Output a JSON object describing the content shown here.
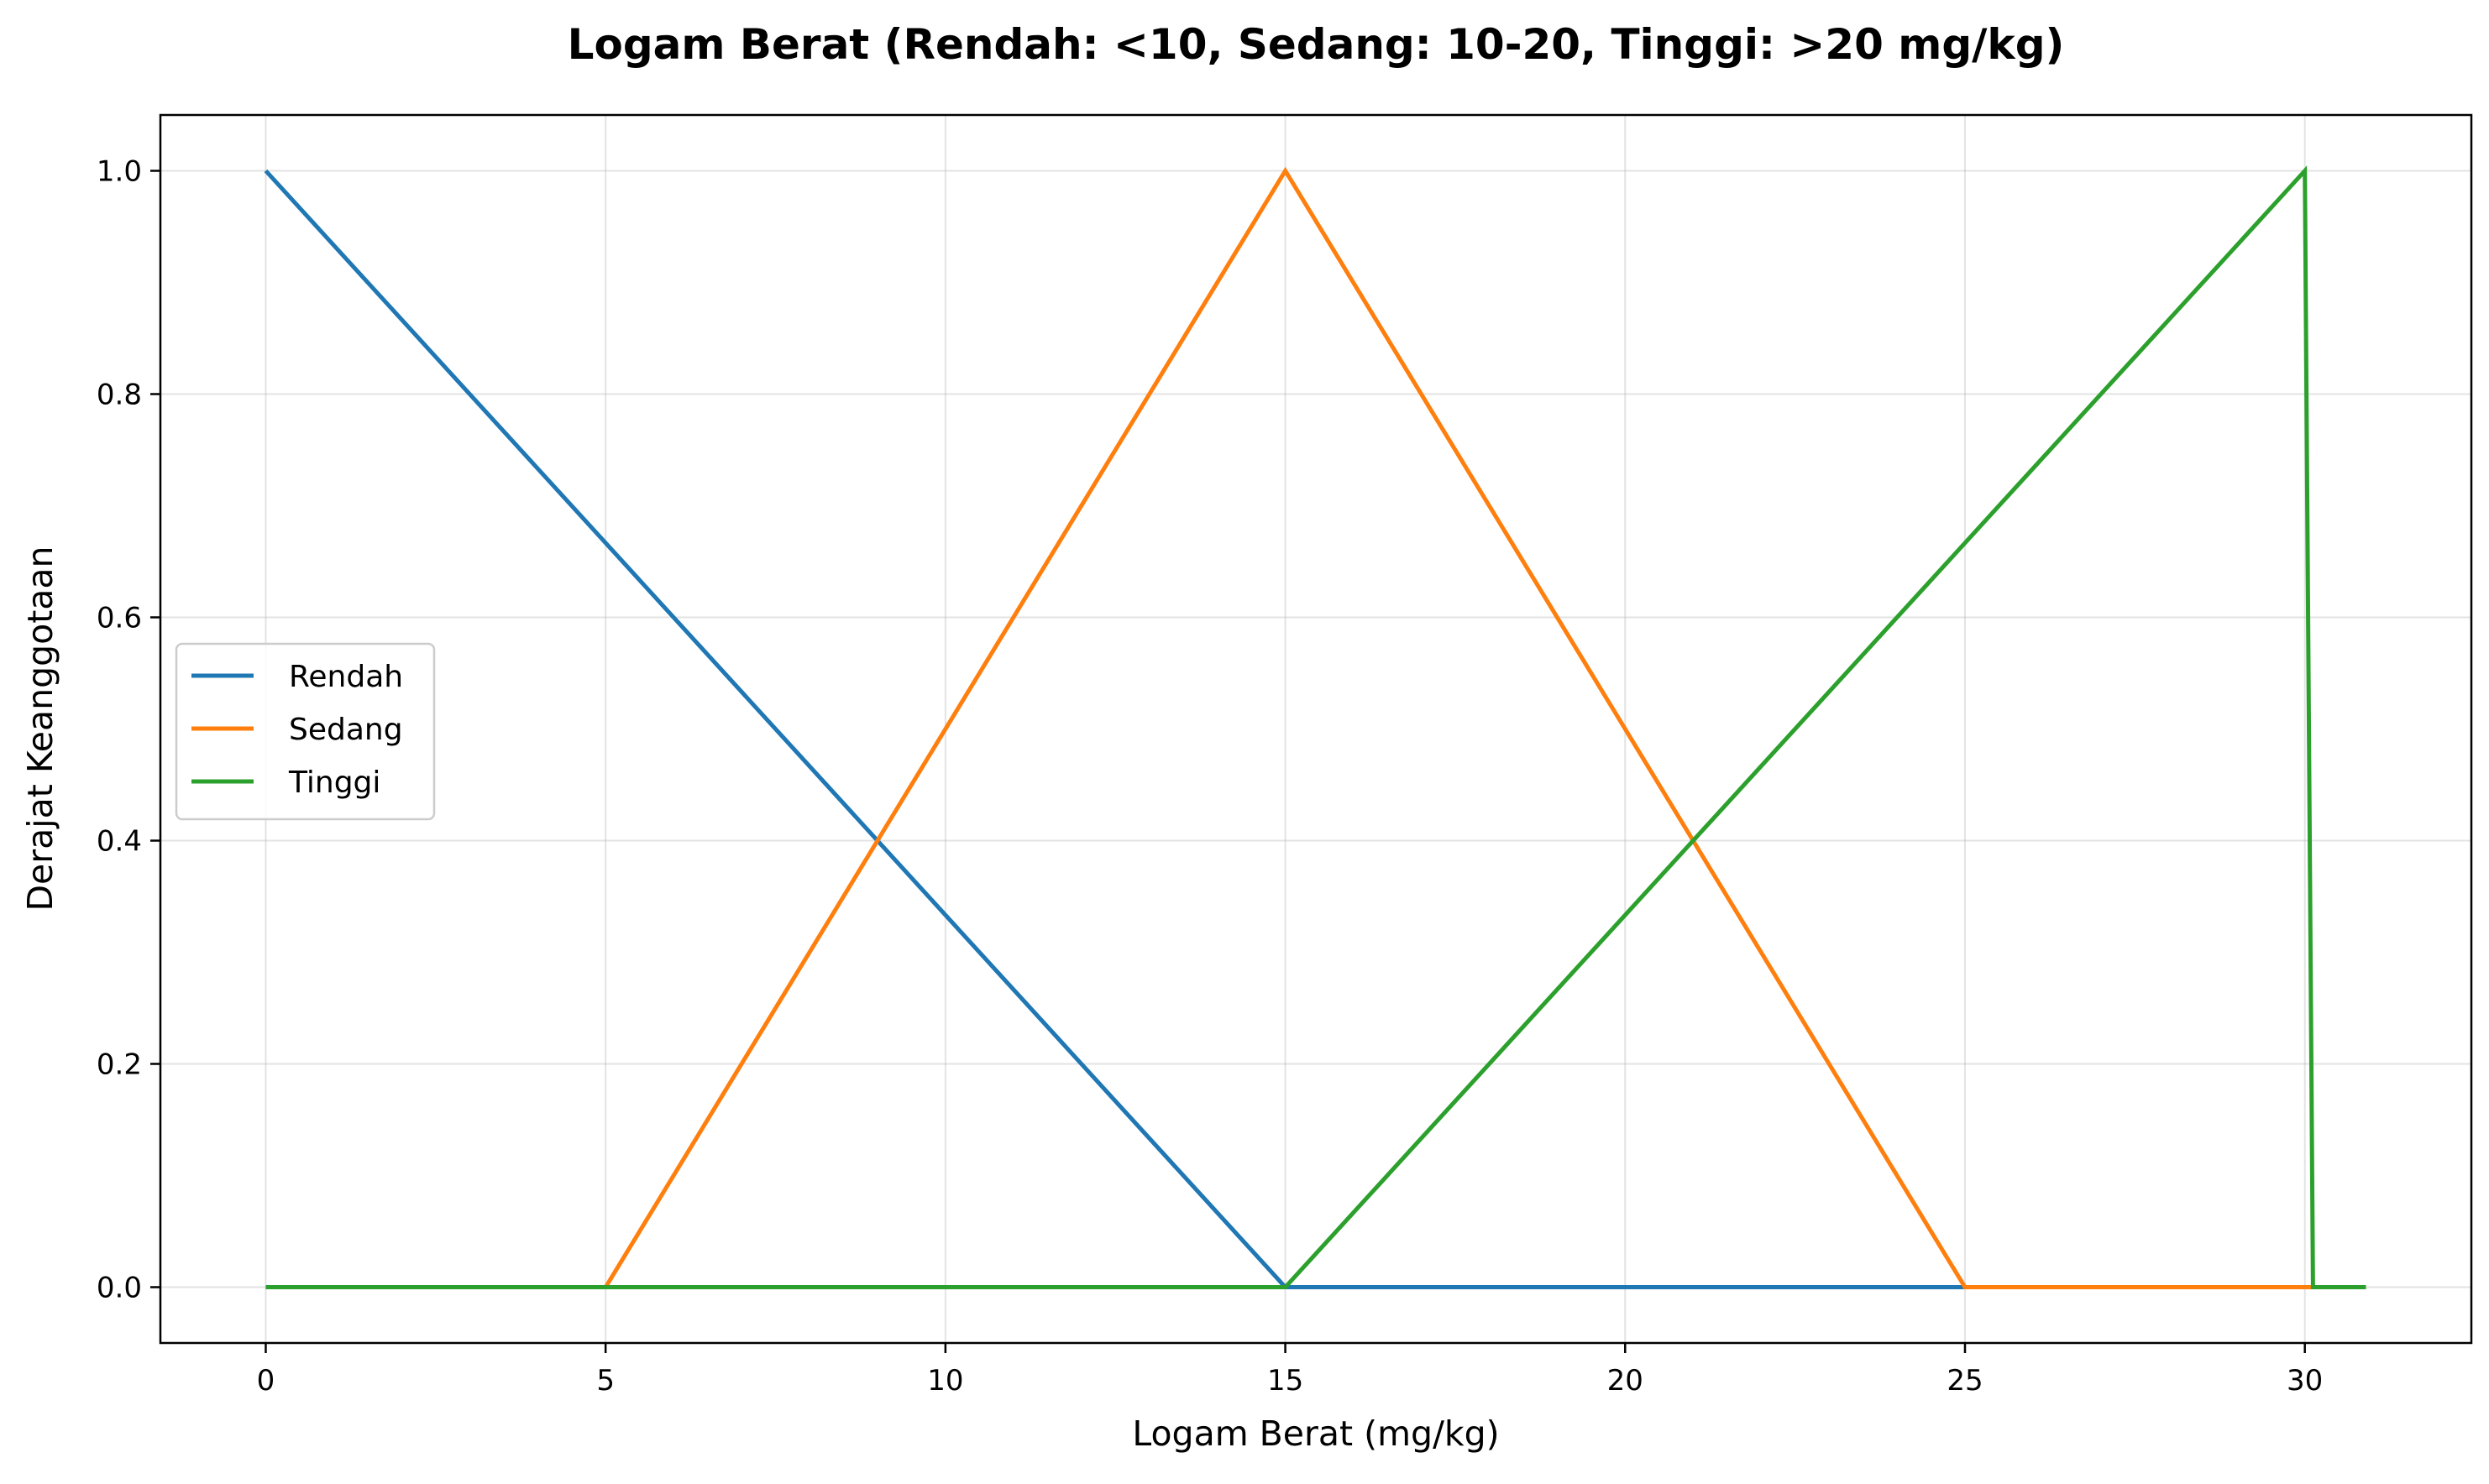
{
  "chart_data": {
    "type": "line",
    "title": "Logam Berat (Rendah: <10, Sedang: 10-20, Tinggi: >20 mg/kg)",
    "xlabel": "Logam Berat (mg/kg)",
    "ylabel": "Derajat Keanggotaan",
    "xlim": [
      -1.55,
      32.45
    ],
    "ylim": [
      -0.05,
      1.05
    ],
    "x_ticks": [
      0,
      5,
      10,
      15,
      20,
      25,
      30
    ],
    "x_tick_labels": [
      "0",
      "5",
      "10",
      "15",
      "20",
      "25",
      "30"
    ],
    "y_ticks": [
      0.0,
      0.2,
      0.4,
      0.6,
      0.8,
      1.0
    ],
    "y_tick_labels": [
      "0.0",
      "0.2",
      "0.4",
      "0.6",
      "0.8",
      "1.0"
    ],
    "grid": true,
    "legend_position": "center-left",
    "series": [
      {
        "name": "Rendah",
        "color": "#1f77b4",
        "points": [
          [
            0,
            1.0
          ],
          [
            15,
            0.0
          ],
          [
            30.9,
            0.0
          ]
        ]
      },
      {
        "name": "Sedang",
        "color": "#ff7f0e",
        "points": [
          [
            0,
            0.0
          ],
          [
            5,
            0.0
          ],
          [
            15,
            1.0
          ],
          [
            25,
            0.0
          ],
          [
            30.9,
            0.0
          ]
        ]
      },
      {
        "name": "Tinggi",
        "color": "#2ca02c",
        "points": [
          [
            0,
            0.0
          ],
          [
            15,
            0.0
          ],
          [
            30,
            1.0
          ],
          [
            30.12,
            0.0
          ],
          [
            30.9,
            0.0
          ]
        ]
      }
    ]
  }
}
